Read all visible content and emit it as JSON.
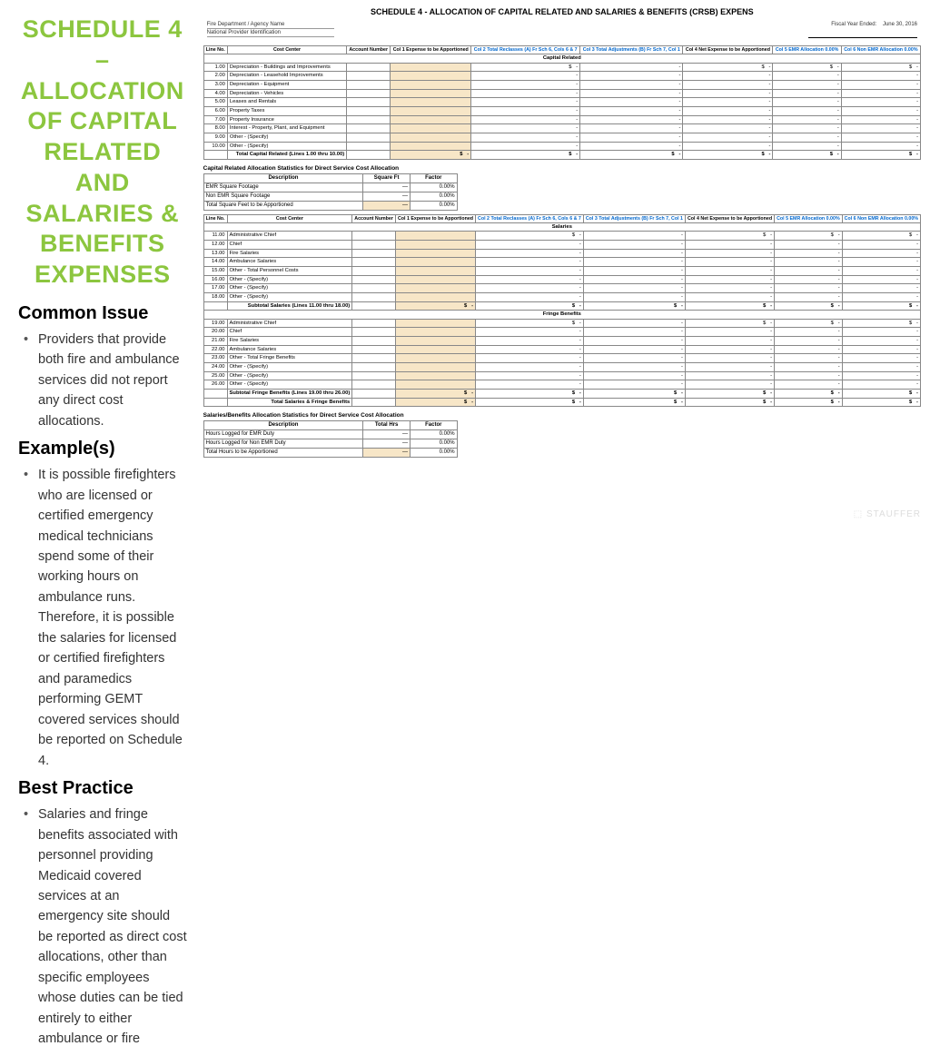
{
  "title": "SCHEDULE 4 – ALLOCATION OF CAPITAL RELATED AND SALARIES & BENEFITS EXPENSES",
  "sections": {
    "issue_h": "Common Issue",
    "issue_b": "Providers that provide both fire and ambulance services did not report any direct cost allocations.",
    "ex_h": "Example(s)",
    "ex_b": "It is possible firefighters who are licensed or certified emergency medical technicians spend some of their working hours on ambulance runs. Therefore, it is possible the salaries for licensed or certified firefighters and paramedics performing GEMT covered services should be reported on Schedule 4.",
    "bp_h": "Best Practice",
    "bp_b": "Salaries and fringe benefits associated with personnel providing Medicaid covered services at an emergency site should be reported as direct cost allocations, other than specific employees whose duties can be tied entirely to either ambulance or fire services."
  },
  "form": {
    "heading": "SCHEDULE 4 - ALLOCATION OF CAPITAL RELATED AND SALARIES & BENEFITS (CRSB) EXPENS",
    "meta_agency": "Fire Department / Agency Name",
    "meta_npi": "National Provider Identification",
    "meta_fy_lbl": "Fiscal Year Ended:",
    "meta_fy_val": "June 30, 2016",
    "col_headers": [
      "Line No.",
      "Cost Center",
      "Account Number",
      "Col 1\nExpense to be Apportioned",
      "Col 2\nTotal Reclasses (A)\nFr Sch 6, Cols 6 & 7",
      "Col 3\nTotal Adjustments (B)\nFr Sch 7, Col 1",
      "Col 4\nNet Expense to be Apportioned",
      "Col 5\nEMR Allocation\n0.00%",
      "Col 6\nNon EMR Allocation\n0.00%"
    ],
    "capital_section": "Capital Related",
    "capital_rows": [
      [
        "1.00",
        "Depreciation - Buildings and Improvements"
      ],
      [
        "2.00",
        "Depreciation - Leasehold Improvements"
      ],
      [
        "3.00",
        "Depreciation - Equipment"
      ],
      [
        "4.00",
        "Depreciation - Vehicles"
      ],
      [
        "5.00",
        "Leases and Rentals"
      ],
      [
        "6.00",
        "Property Taxes"
      ],
      [
        "7.00",
        "Property Insurance"
      ],
      [
        "8.00",
        "Interest - Property, Plant, and Equipment"
      ],
      [
        "9.00",
        "Other - (Specify)"
      ],
      [
        "10.00",
        "Other - (Specify)"
      ]
    ],
    "capital_total": "Total Capital Related (Lines 1.00 thru 10.00)",
    "alloc1_caption": "Capital Related Allocation Statistics for Direct Service Cost Allocation",
    "alloc1_cols": [
      "Description",
      "Square Ft",
      "Factor"
    ],
    "alloc1_rows": [
      [
        "EMR Square Footage",
        "",
        "0.00%"
      ],
      [
        "Non EMR Square Footage",
        "",
        "0.00%"
      ],
      [
        "Total Square Feet to be Apportioned",
        "",
        "0.00%"
      ]
    ],
    "salaries_section": "Salaries",
    "salaries_rows": [
      [
        "11.00",
        "Administrative Chief"
      ],
      [
        "12.00",
        "Chief"
      ],
      [
        "13.00",
        "Fire Salaries"
      ],
      [
        "14.00",
        "Ambulance Salaries"
      ],
      [
        "15.00",
        "Other - Total Personnel Costs"
      ],
      [
        "16.00",
        "Other - (Specify)"
      ],
      [
        "17.00",
        "Other - (Specify)"
      ],
      [
        "18.00",
        "Other - (Specify)"
      ]
    ],
    "salaries_subtotal": "Subtotal Salaries (Lines 11.00 thru 18.00)",
    "fringe_section": "Fringe Benefits",
    "fringe_rows": [
      [
        "19.00",
        "Administrative Chief"
      ],
      [
        "20.00",
        "Chief"
      ],
      [
        "21.00",
        "Fire Salaries"
      ],
      [
        "22.00",
        "Ambulance Salaries"
      ],
      [
        "23.00",
        "Other - Total Fringe Benefits"
      ],
      [
        "24.00",
        "Other - (Specify)"
      ],
      [
        "25.00",
        "Other - (Specify)"
      ],
      [
        "26.00",
        "Other - (Specify)"
      ]
    ],
    "fringe_subtotal": "Subtotal Fringe Benefits (Lines 19.00 thru 26.00)",
    "sb_total": "Total Salaries & Fringe Benefits",
    "alloc2_caption": "Salaries/Benefits Allocation Statistics for Direct Service Cost Allocation",
    "alloc2_cols": [
      "Description",
      "Total Hrs",
      "Factor"
    ],
    "alloc2_rows": [
      [
        "Hours Logged for EMR Duty",
        "",
        "0.00%"
      ],
      [
        "Hours Logged for Non EMR Duty",
        "",
        "0.00%"
      ],
      [
        "Total Hours to be Apportioned",
        "",
        "0.00%"
      ]
    ]
  },
  "dash": "-",
  "dollar": "$",
  "zero_dash": "-"
}
